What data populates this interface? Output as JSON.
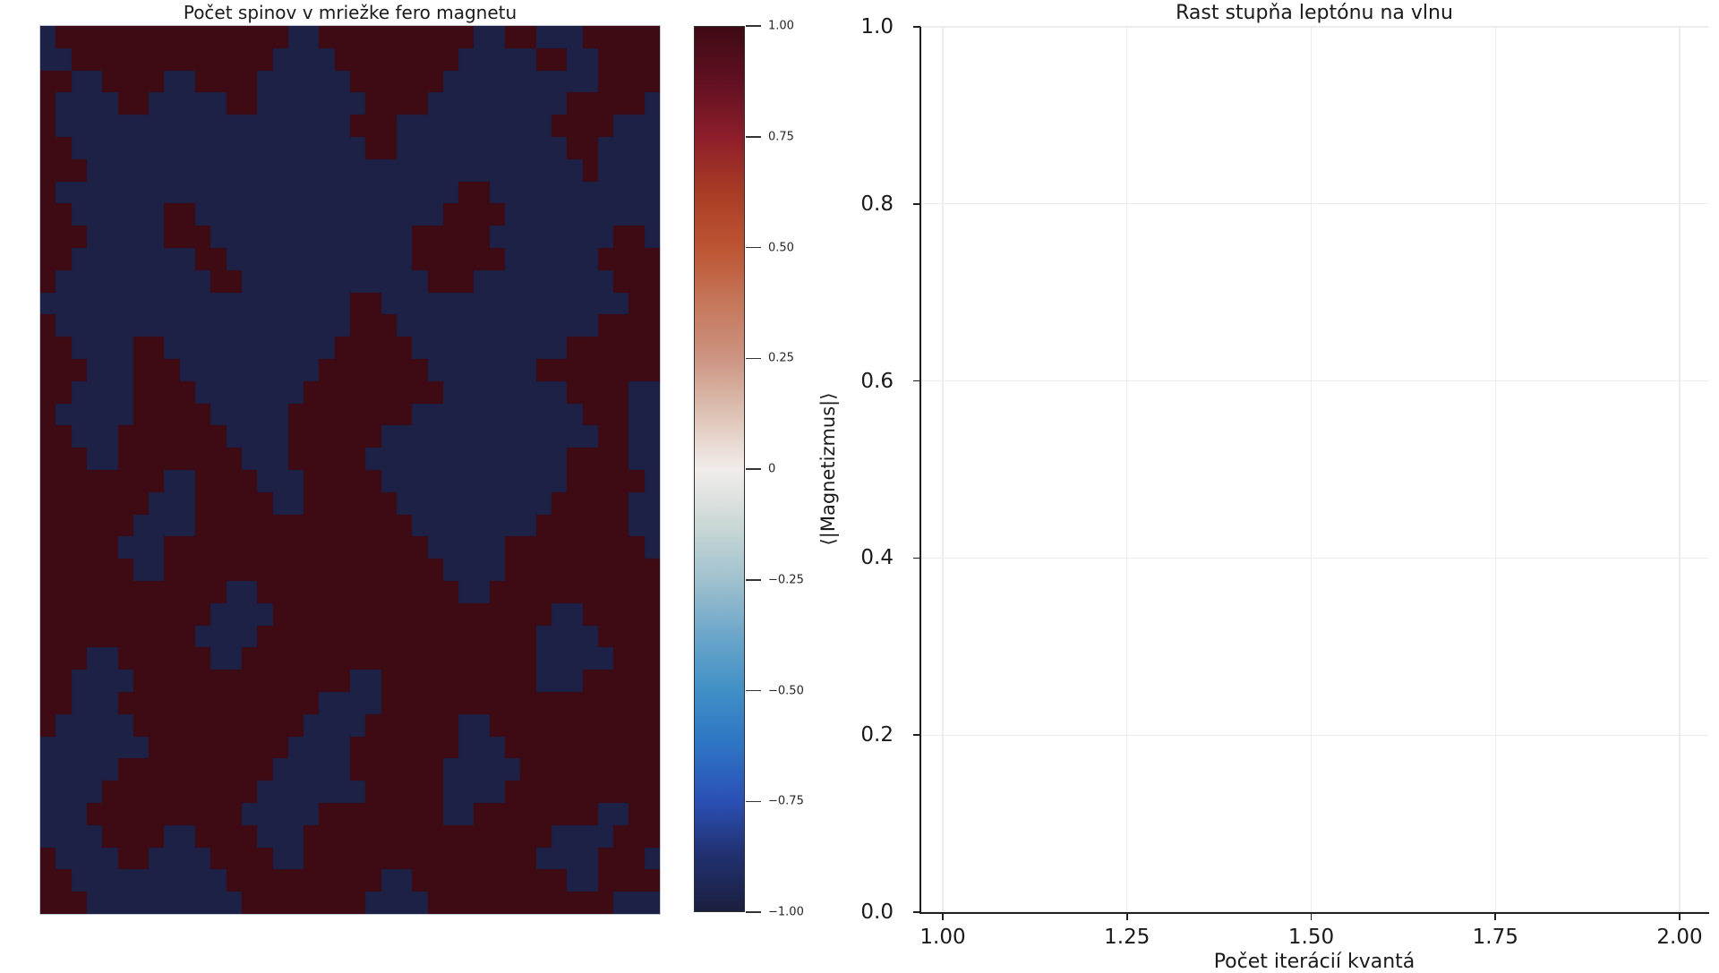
{
  "figure": {
    "background": "#ffffff"
  },
  "chart_data": [
    {
      "type": "heatmap",
      "title": "Počet spinov v mriežke fero magnetu",
      "rows": 40,
      "cols": 40,
      "value_encoding": {
        "R": 1,
        "B": -1
      },
      "cell_colors": {
        "R": "#3e0a13",
        "B": "#1c2145"
      },
      "grid": [
        "BRRRRRRRRRRRRRRRBBRRRRRRRRRRBBRRBBBRRRRR",
        "BBRRRRRRRRRRRRRBBBBRRRRRRRRBBBBBRRBBRRRR",
        "RRBBRRRRBBRRRRBBBBBBRRRRRRBBBBBBBBBBRRRR",
        "RBBBBRRBBBBBRRBBBBBBBRRRRBBBBBBBBBRRRRRB",
        "RBBBBBBBBBBBBBBBBBBBRRRBBBBBBBBBBRRRRBBB",
        "RRBBBBBBBBBBBBBBBBBBBRRBBBBBBBBBBBRRBBBB",
        "RRRBBBBBBBBBBBBBBBBBBBBBBBBBBBBBBBBRBBBB",
        "RBBBBBBBBBBBBBBBBBBBBBBBBBBRRBBBBBBBBBBB",
        "RRBBBBBBRRBBBBBBBBBBBBBBBBRRRRBBBBBBBBBB",
        "RRRBBBBBRRRBBBBBBBBBBBBBRRRRRBBBBBBBBRR",
        "RRBBBBBBBBRRBBBBBBBBBBBBRRRRRRBBBBBBRRRR",
        "RBBBBBBBBBBRRBBBBBBBBBBBBRRRBBBBBBBBBRRR",
        "BBBBBBBBBBBBBBBBBBBBRRBBBBBBBBBBBBBBBBRR",
        "RBBBBBBBBBBBBBBBBBBBRRRBBBBBBBBBBBBBRRRR",
        "RRBBBBRRBBBBBBBBBBBRRRRRBBBBBBBBBBRRRRRR",
        "RRRBBBRRRBBBBBBBBBRRRRRRRBBBBBBBRRRRRRRR",
        "RRBBBBRRRRBBBBBBBRRRRRRRRRBBBBBBBBRRRRBB",
        "RBBBBBRRRRRBBBBBRRRRRRRRBBBBBBBBBBBRRRBB",
        "RRBBBRRRRRRRBBBBRRRRRRBBBBBBBBBBBBBBRRBB",
        "RRRBBRRRRRRRRBBBRRRRRBBBBBBBBBBBBBRRRRB",
        "RRRRRRRRBBRRRRBBBRRRRRBBBBBBBBBBBBRRRRRB",
        "RRRRRRRBBBRRRRRBBRRRRRRBBBBBBBBBBRRRRRBB",
        "RRRRRRBBBBRRRRRRRRRRRRRRBBBBBBBBRRRRRRBB",
        "RRRRRBBBRRRRRRRRRRRRRRRRRBBBBBRRRRRRRRRB",
        "RRRRRRBBRRRRRRRRRRRRRRRRRRBBBBRRRRRRRRRR",
        "RRRRRRRRRRRRBBRRRRRRRRRRRRRBBRRRRRRRRRRR",
        "RRRRRRRRRRRBBBBRRRRRRRRRRRRRRRRRRBBRRRRR",
        "RRRRRRRRRRBBBBRRRRRRRRRRRRRRRRRRBBBBRRRR",
        "RRRBBRRRRRRBBRRRRRRRRRRRRRRRRRRRBBBBBRRRR",
        "RRBBBBRRRRRRRRRRRRRRBBRRRRRRRRRRBBBRRRRR",
        "RRBBBRRRRRRRRRRRRRBBBBRRRRRRRRRRRRRRRRRR",
        "RBBBBBRRRRRRRRRRRBBBBRRRRRRBBRRRRRRRRRRR",
        "BBBBBBBRRRRRRRRRBBBBRRRRRRRBBBRRRRRRRRRR",
        "BBBBBRRRRRRRRRRBBBBBRRRRRRBBBBBRRRRRRRRR",
        "BBBBRRRRRRRRRRBBBBBBBRRRRRBBBBRRRRRRRRRR",
        "BBBRRRRRRRRRRBBBBBRRRRRRRRBBRRRRRRRRBBRR",
        "BBBBRRRRBBRRRRBBBRRRRRRRRRRRRRRRRBBBBRR",
        "RBBBBRRBBBBRRRRBBRRRRRRRRRRRRRRRBBBBRRR",
        "RRBBBBBBBBBBRRRRRRRRRRBBRRRRRRRRRRBBRRRR",
        "RRRBBBBBBBBBBRRRRRRRRBBBBRRRRRRRRRRRRBB"
      ],
      "colorbar": {
        "label": "⟨|Magnetizmus|⟩",
        "range": [
          -1,
          1
        ],
        "ticks": [
          {
            "value": 1.0,
            "label": "1.00"
          },
          {
            "value": 0.75,
            "label": "0.75"
          },
          {
            "value": 0.5,
            "label": "0.50"
          },
          {
            "value": 0.25,
            "label": "0.25"
          },
          {
            "value": 0,
            "label": "0"
          },
          {
            "value": -0.25,
            "label": "−0.25"
          },
          {
            "value": -0.5,
            "label": "−0.50"
          },
          {
            "value": -0.75,
            "label": "−0.75"
          },
          {
            "value": -1.0,
            "label": "−1.00"
          }
        ],
        "gradient_stops": [
          {
            "pos": 0.0,
            "color": "#1b1f3f"
          },
          {
            "pos": 0.0625,
            "color": "#21306f"
          },
          {
            "pos": 0.125,
            "color": "#2b50b5"
          },
          {
            "pos": 0.1875,
            "color": "#2e74c4"
          },
          {
            "pos": 0.25,
            "color": "#4090c6"
          },
          {
            "pos": 0.3125,
            "color": "#6ca6ca"
          },
          {
            "pos": 0.375,
            "color": "#a0c1ce"
          },
          {
            "pos": 0.4375,
            "color": "#cbd8d6"
          },
          {
            "pos": 0.5,
            "color": "#f1edea"
          },
          {
            "pos": 0.5625,
            "color": "#ddc2b4"
          },
          {
            "pos": 0.625,
            "color": "#cd9482"
          },
          {
            "pos": 0.6875,
            "color": "#c5775a"
          },
          {
            "pos": 0.75,
            "color": "#bc5533"
          },
          {
            "pos": 0.8125,
            "color": "#a93c25"
          },
          {
            "pos": 0.875,
            "color": "#8d1e2b"
          },
          {
            "pos": 0.9375,
            "color": "#611021"
          },
          {
            "pos": 1.0,
            "color": "#3e0a13"
          }
        ]
      }
    },
    {
      "type": "line",
      "title": "Rast stupňa leptónu na vlnu",
      "xlabel": "Počet iterácií kvantá",
      "ylabel": "",
      "xlim": [
        0.97,
        2.04
      ],
      "ylim": [
        0,
        1
      ],
      "grid": true,
      "series": [],
      "x_ticks": [
        {
          "value": 1.0,
          "label": "1.00"
        },
        {
          "value": 1.25,
          "label": "1.25"
        },
        {
          "value": 1.5,
          "label": "1.50"
        },
        {
          "value": 1.75,
          "label": "1.75"
        },
        {
          "value": 2.0,
          "label": "2.00"
        }
      ],
      "y_ticks": [
        {
          "value": 1.0,
          "label": "1.0"
        },
        {
          "value": 0.8,
          "label": "0.8"
        },
        {
          "value": 0.6,
          "label": "0.6"
        },
        {
          "value": 0.4,
          "label": "0.4"
        },
        {
          "value": 0.2,
          "label": "0.2"
        },
        {
          "value": 0.0,
          "label": "0.0"
        }
      ]
    }
  ]
}
